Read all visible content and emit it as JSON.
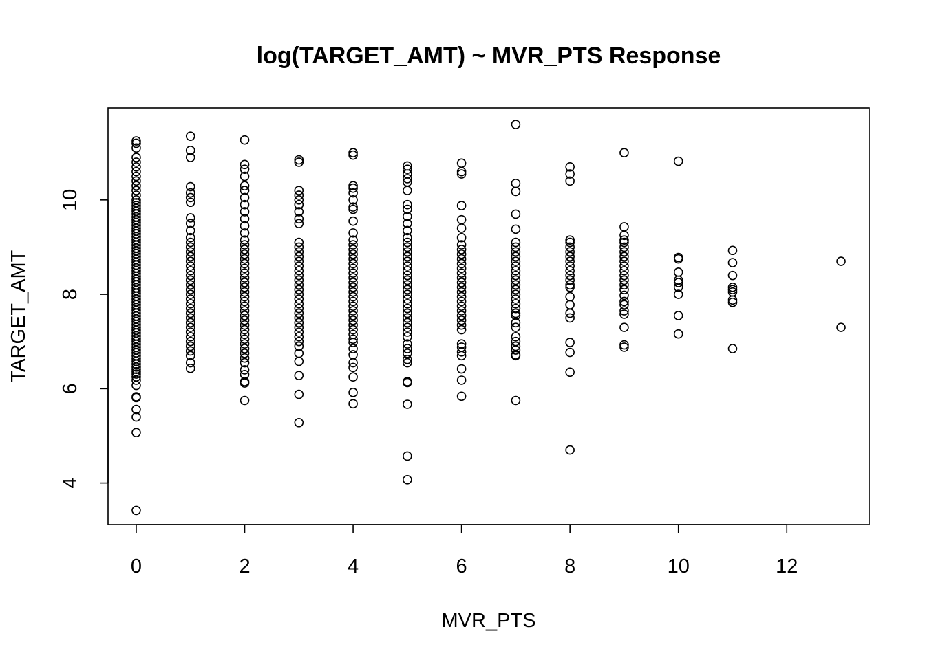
{
  "chart_data": {
    "type": "scatter",
    "title": "log(TARGET_AMT) ~ MVR_PTS Response",
    "xlabel": "MVR_PTS",
    "ylabel": "TARGET_AMT",
    "xlim": [
      -0.52,
      13.52
    ],
    "ylim": [
      3.12,
      11.95
    ],
    "xticks": [
      0,
      2,
      4,
      6,
      8,
      10,
      12
    ],
    "yticks": [
      4,
      6,
      8,
      10
    ],
    "grid": false,
    "legend": "none",
    "marker": "open-circle",
    "color": "#000000",
    "columns": [
      {
        "x": 0,
        "y": [
          3.42,
          5.07,
          5.4,
          5.56,
          5.81,
          5.83,
          6.07,
          6.18,
          6.25,
          6.31,
          6.36,
          6.41,
          6.46,
          6.52,
          6.58,
          6.64,
          6.7,
          6.76,
          6.82,
          6.88,
          6.94,
          7.0,
          7.06,
          7.12,
          7.18,
          7.24,
          7.3,
          7.36,
          7.42,
          7.48,
          7.54,
          7.6,
          7.66,
          7.72,
          7.78,
          7.84,
          7.9,
          7.96,
          8.02,
          8.08,
          8.14,
          8.2,
          8.26,
          8.32,
          8.38,
          8.44,
          8.5,
          8.56,
          8.62,
          8.68,
          8.74,
          8.8,
          8.86,
          8.92,
          8.98,
          9.04,
          9.1,
          9.16,
          9.22,
          9.28,
          9.34,
          9.4,
          9.46,
          9.52,
          9.58,
          9.64,
          9.7,
          9.76,
          9.82,
          9.88,
          9.94,
          10.0,
          10.1,
          10.2,
          10.3,
          10.4,
          10.5,
          10.6,
          10.7,
          10.8,
          10.9,
          11.1,
          11.2,
          11.25
        ]
      },
      {
        "x": 1,
        "y": [
          6.43,
          6.55,
          6.7,
          6.8,
          6.9,
          7.0,
          7.1,
          7.2,
          7.3,
          7.4,
          7.5,
          7.6,
          7.7,
          7.8,
          7.9,
          8.0,
          8.1,
          8.2,
          8.3,
          8.4,
          8.5,
          8.6,
          8.7,
          8.8,
          8.9,
          9.0,
          9.1,
          9.2,
          9.35,
          9.5,
          9.62,
          9.95,
          10.05,
          10.15,
          10.28,
          10.9,
          11.05,
          11.35
        ]
      },
      {
        "x": 2,
        "y": [
          5.75,
          6.12,
          6.15,
          6.3,
          6.4,
          6.55,
          6.65,
          6.75,
          6.85,
          6.95,
          7.05,
          7.15,
          7.25,
          7.35,
          7.45,
          7.55,
          7.65,
          7.75,
          7.85,
          7.95,
          8.05,
          8.15,
          8.25,
          8.35,
          8.45,
          8.55,
          8.65,
          8.75,
          8.85,
          8.95,
          9.05,
          9.15,
          9.3,
          9.45,
          9.6,
          9.75,
          9.9,
          10.05,
          10.2,
          10.3,
          10.5,
          10.65,
          10.75,
          11.27
        ]
      },
      {
        "x": 3,
        "y": [
          5.28,
          5.88,
          6.28,
          6.58,
          6.75,
          6.9,
          7.0,
          7.1,
          7.2,
          7.3,
          7.4,
          7.5,
          7.6,
          7.7,
          7.8,
          7.9,
          8.0,
          8.1,
          8.2,
          8.3,
          8.4,
          8.5,
          8.6,
          8.7,
          8.8,
          8.9,
          9.0,
          9.1,
          9.5,
          9.6,
          9.75,
          9.9,
          10.0,
          10.1,
          10.2,
          10.8,
          10.85
        ]
      },
      {
        "x": 4,
        "y": [
          5.68,
          5.92,
          6.25,
          6.45,
          6.55,
          6.72,
          6.85,
          6.98,
          7.05,
          7.15,
          7.25,
          7.35,
          7.45,
          7.55,
          7.65,
          7.75,
          7.85,
          7.95,
          8.05,
          8.15,
          8.25,
          8.35,
          8.45,
          8.55,
          8.65,
          8.75,
          8.85,
          8.95,
          9.05,
          9.15,
          9.3,
          9.55,
          9.8,
          9.85,
          10.0,
          10.15,
          10.25,
          10.3,
          10.95,
          11.0
        ]
      },
      {
        "x": 5,
        "y": [
          4.07,
          4.57,
          5.67,
          6.13,
          6.15,
          6.55,
          6.62,
          6.75,
          6.85,
          6.95,
          7.1,
          7.2,
          7.3,
          7.4,
          7.5,
          7.6,
          7.7,
          7.8,
          7.9,
          8.0,
          8.1,
          8.2,
          8.3,
          8.4,
          8.5,
          8.6,
          8.7,
          8.8,
          8.9,
          9.0,
          9.1,
          9.2,
          9.35,
          9.5,
          9.65,
          9.8,
          9.9,
          10.2,
          10.38,
          10.45,
          10.55,
          10.65,
          10.72
        ]
      },
      {
        "x": 6,
        "y": [
          5.84,
          6.18,
          6.42,
          6.7,
          6.78,
          6.88,
          6.95,
          7.25,
          7.35,
          7.45,
          7.55,
          7.65,
          7.75,
          7.85,
          7.95,
          8.05,
          8.15,
          8.25,
          8.35,
          8.45,
          8.55,
          8.65,
          8.75,
          8.85,
          8.95,
          9.05,
          9.2,
          9.4,
          9.58,
          9.88,
          10.55,
          10.6,
          10.78
        ]
      },
      {
        "x": 7,
        "y": [
          5.75,
          6.7,
          6.72,
          6.82,
          6.9,
          7.0,
          7.1,
          7.3,
          7.4,
          7.55,
          7.6,
          7.7,
          7.8,
          7.9,
          8.0,
          8.1,
          8.2,
          8.3,
          8.4,
          8.5,
          8.6,
          8.7,
          8.8,
          8.9,
          9.0,
          9.1,
          9.38,
          9.7,
          10.18,
          10.35,
          11.6
        ]
      },
      {
        "x": 8,
        "y": [
          4.7,
          6.35,
          6.77,
          6.98,
          7.5,
          7.6,
          7.78,
          7.95,
          8.15,
          8.2,
          8.3,
          8.4,
          8.5,
          8.6,
          8.7,
          8.8,
          8.9,
          9.0,
          9.1,
          9.15,
          10.4,
          10.55,
          10.7
        ]
      },
      {
        "x": 9,
        "y": [
          6.88,
          6.93,
          7.3,
          7.58,
          7.65,
          7.78,
          7.85,
          7.98,
          8.1,
          8.2,
          8.3,
          8.4,
          8.5,
          8.6,
          8.7,
          8.8,
          8.9,
          9.0,
          9.1,
          9.15,
          9.25,
          9.43,
          11.0
        ]
      },
      {
        "x": 10,
        "y": [
          7.16,
          7.55,
          8.0,
          8.15,
          8.25,
          8.3,
          8.47,
          8.75,
          8.78,
          10.82
        ]
      },
      {
        "x": 11,
        "y": [
          6.85,
          7.83,
          7.88,
          8.05,
          8.1,
          8.15,
          8.4,
          8.67,
          8.93
        ]
      },
      {
        "x": 13,
        "y": [
          7.3,
          8.7
        ]
      }
    ]
  }
}
